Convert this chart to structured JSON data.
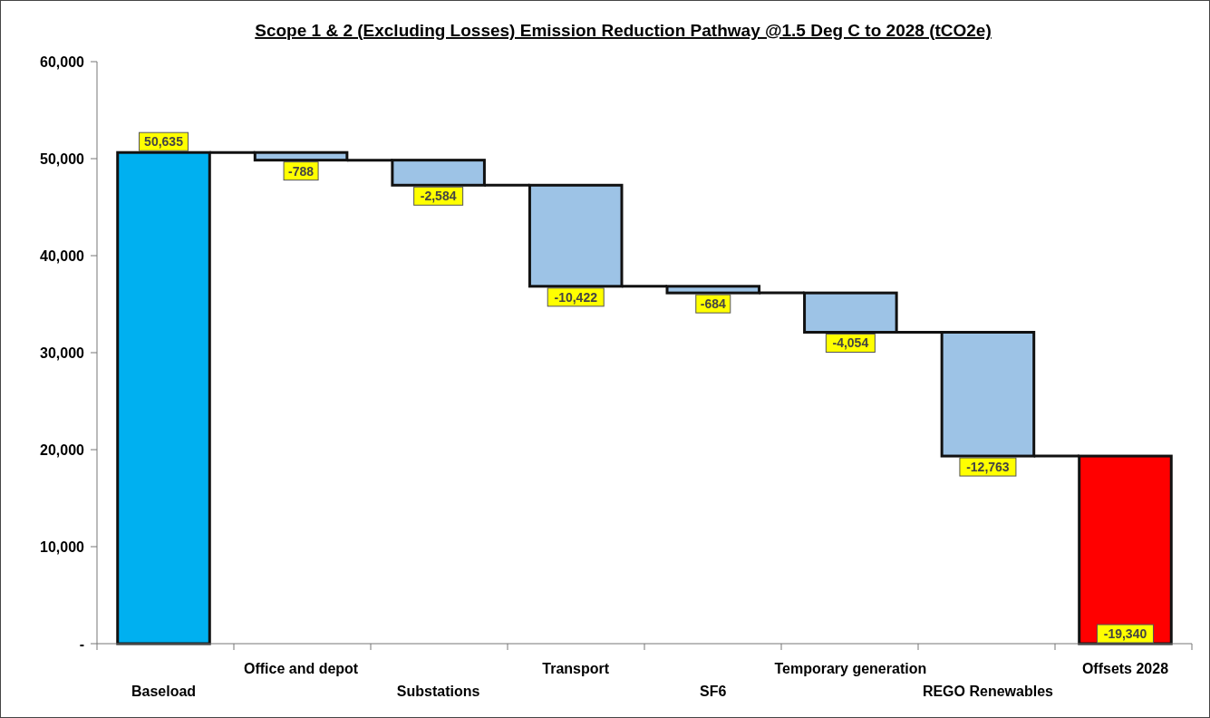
{
  "chart_data": {
    "type": "bar",
    "title": "Scope 1 & 2 (Excluding Losses) Emission Reduction Pathway @1.5 Deg C to 2028 (tCO2e)",
    "categories": [
      "Baseload",
      "Office and depot",
      "Substations",
      "Transport",
      "SF6",
      "Temporary generation",
      "REGO Renewables",
      "Offsets 2028"
    ],
    "values": [
      50635,
      -788,
      -2584,
      -10422,
      -684,
      -4054,
      -12763,
      -19340
    ],
    "base": [
      0,
      50635,
      49847,
      47263,
      36841,
      36157,
      32103,
      19340
    ],
    "colors": [
      "#00b0f0",
      "#9dc3e6",
      "#9dc3e6",
      "#9dc3e6",
      "#9dc3e6",
      "#9dc3e6",
      "#9dc3e6",
      "#ff0000"
    ],
    "value_labels": [
      "50,635",
      "-788",
      "-2,584",
      "-10,422",
      "-684",
      "-4,054",
      "-12,763",
      "-19,340"
    ],
    "ylim": [
      0,
      60000
    ],
    "yticks": [
      {
        "value": 0,
        "label": "-"
      },
      {
        "value": 10000,
        "label": "10,000"
      },
      {
        "value": 20000,
        "label": "20,000"
      },
      {
        "value": 30000,
        "label": "30,000"
      },
      {
        "value": 40000,
        "label": "40,000"
      },
      {
        "value": 50000,
        "label": "50,000"
      },
      {
        "value": 60000,
        "label": "60,000"
      }
    ],
    "grid": false
  }
}
